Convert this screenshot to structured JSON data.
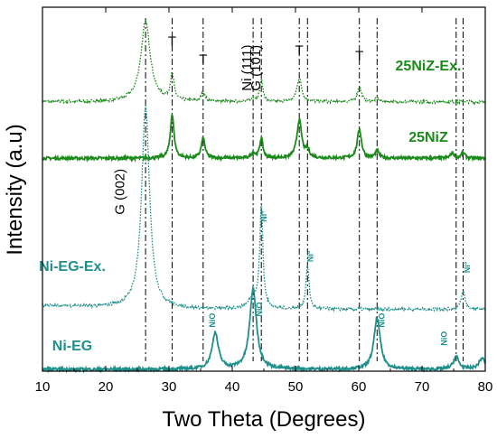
{
  "chart_data": {
    "type": "line",
    "xlabel": "Two Theta (Degrees)",
    "ylabel": "Intensity (a.u)",
    "xlim": [
      10,
      80
    ],
    "xticks": [
      "10",
      "20",
      "30",
      "40",
      "50",
      "60",
      "70",
      "80"
    ],
    "grid": false,
    "colors": {
      "green": "#1a8a1a",
      "teal": "#1e8f8a"
    },
    "series": [
      {
        "name": "25NiZ-Ex.",
        "style": "dotted",
        "color": "#1a8a1a",
        "baseline": 0.74,
        "peaks": [
          [
            26.3,
            0.22,
            0.9
          ],
          [
            30.5,
            0.07,
            0.35
          ],
          [
            35.4,
            0.025,
            0.35
          ],
          [
            43.3,
            0.01,
            0.35
          ],
          [
            44.6,
            0.06,
            0.3
          ],
          [
            50.6,
            0.065,
            0.45
          ],
          [
            60.1,
            0.04,
            0.4
          ],
          [
            62.9,
            0.01,
            0.35
          ]
        ]
      },
      {
        "name": "25NiZ",
        "style": "solid",
        "color": "#1a8a1a",
        "baseline": 0.585,
        "peaks": [
          [
            30.5,
            0.12,
            0.35
          ],
          [
            35.4,
            0.055,
            0.35
          ],
          [
            43.3,
            0.015,
            0.35
          ],
          [
            44.6,
            0.055,
            0.3
          ],
          [
            50.6,
            0.105,
            0.45
          ],
          [
            51.9,
            0.02,
            0.35
          ],
          [
            60.1,
            0.08,
            0.4
          ],
          [
            62.9,
            0.02,
            0.35
          ],
          [
            74.8,
            0.015,
            0.35
          ],
          [
            76.5,
            0.015,
            0.35
          ]
        ]
      },
      {
        "name": "Ni-EG-Ex.",
        "style": "dotted",
        "color": "#1e8f8a",
        "baseline": 0.17,
        "peaks": [
          [
            26.3,
            0.555,
            0.75
          ],
          [
            44.6,
            0.28,
            0.3
          ],
          [
            51.9,
            0.12,
            0.3
          ],
          [
            76.5,
            0.05,
            0.35
          ],
          [
            43.3,
            0.03,
            0.8
          ]
        ]
      },
      {
        "name": "Ni-EG",
        "style": "solid",
        "color": "#1e8f8a",
        "baseline": 0.005,
        "peaks": [
          [
            37.3,
            0.1,
            0.6
          ],
          [
            43.3,
            0.22,
            0.65
          ],
          [
            62.9,
            0.14,
            0.6
          ],
          [
            75.4,
            0.035,
            0.5
          ],
          [
            79.5,
            0.03,
            0.6
          ]
        ]
      }
    ],
    "reference_lines_x": [
      26.3,
      30.5,
      35.4,
      43.3,
      44.6,
      50.6,
      51.9,
      60.1,
      62.9,
      75.4,
      76.5
    ],
    "annotations": [
      {
        "text": "T",
        "x": 30.5,
        "y": 0.895,
        "style": "peak"
      },
      {
        "text": "T",
        "x": 35.4,
        "y": 0.845,
        "style": "peak"
      },
      {
        "text": "T",
        "x": 50.6,
        "y": 0.87,
        "style": "peak"
      },
      {
        "text": "T",
        "x": 60.1,
        "y": 0.855,
        "style": "peak"
      },
      {
        "text": "Ni (111)",
        "x": 43.0,
        "y": 0.77,
        "style": "rotated"
      },
      {
        "text": "G (101)",
        "x": 44.4,
        "y": 0.77,
        "style": "rotated"
      },
      {
        "text": "G (002)",
        "x": 22.9,
        "y": 0.43,
        "style": "rotated"
      },
      {
        "text": "Ni°",
        "x": 45.4,
        "y": 0.41,
        "style": "small-rotated"
      },
      {
        "text": "Ni°",
        "x": 52.8,
        "y": 0.3,
        "style": "small-rotated"
      },
      {
        "text": "Ni°",
        "x": 77.6,
        "y": 0.27,
        "style": "small-rotated"
      },
      {
        "text": "NiO",
        "x": 37.3,
        "y": 0.12,
        "style": "small-rotated"
      },
      {
        "text": "NiO",
        "x": 44.7,
        "y": 0.15,
        "style": "small-rotated"
      },
      {
        "text": "NiO",
        "x": 64.1,
        "y": 0.12,
        "style": "small-rotated"
      },
      {
        "text": "NiO",
        "x": 73.9,
        "y": 0.07,
        "style": "small-rotated"
      }
    ]
  }
}
